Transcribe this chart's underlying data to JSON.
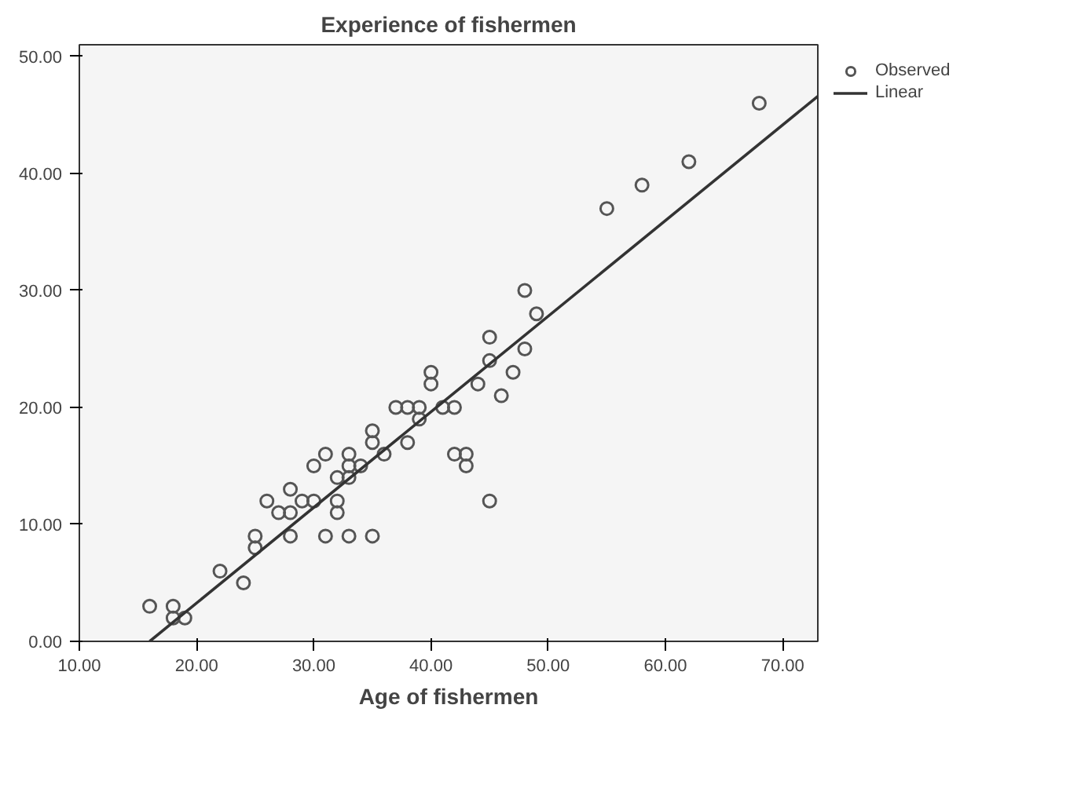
{
  "chart_data": {
    "type": "scatter",
    "title": "Experience of fishermen",
    "xlabel": "Age of fishermen",
    "xlim": [
      10,
      73
    ],
    "ylim": [
      0,
      51
    ],
    "xticks": [
      {
        "value": 10,
        "label": "10.00"
      },
      {
        "value": 20,
        "label": "20.00"
      },
      {
        "value": 30,
        "label": "30.00"
      },
      {
        "value": 40,
        "label": "40.00"
      },
      {
        "value": 50,
        "label": "50.00"
      },
      {
        "value": 60,
        "label": "60.00"
      },
      {
        "value": 70,
        "label": "70.00"
      }
    ],
    "yticks": [
      {
        "value": 0,
        "label": "0.00"
      },
      {
        "value": 10,
        "label": "10.00"
      },
      {
        "value": 20,
        "label": "20.00"
      },
      {
        "value": 30,
        "label": "30.00"
      },
      {
        "value": 40,
        "label": "40.00"
      },
      {
        "value": 50,
        "label": "50.00"
      }
    ],
    "grid": false,
    "legend": "right",
    "series": [
      {
        "name": "Observed",
        "marker": "circle",
        "color": "#555555",
        "x": [
          16,
          18,
          18,
          19,
          22,
          24,
          25,
          25,
          26,
          27,
          28,
          28,
          28,
          29,
          30,
          30,
          31,
          31,
          32,
          32,
          32,
          33,
          33,
          33,
          33,
          34,
          35,
          35,
          35,
          36,
          37,
          38,
          38,
          39,
          39,
          40,
          40,
          41,
          42,
          42,
          43,
          43,
          44,
          45,
          45,
          45,
          46,
          47,
          48,
          48,
          49,
          55,
          58,
          62,
          68
        ],
        "values": [
          3,
          3,
          2,
          2,
          6,
          5,
          9,
          8,
          12,
          11,
          13,
          11,
          9,
          12,
          12,
          15,
          16,
          9,
          14,
          12,
          11,
          14,
          16,
          15,
          9,
          15,
          18,
          17,
          9,
          16,
          20,
          20,
          17,
          20,
          19,
          23,
          22,
          20,
          20,
          16,
          16,
          15,
          22,
          26,
          24,
          12,
          21,
          23,
          30,
          25,
          28,
          37,
          39,
          41,
          46
        ]
      },
      {
        "name": "Linear",
        "type": "line",
        "color": "#333333",
        "line_style": "solid",
        "x": [
          16,
          73
        ],
        "values": [
          0,
          46.6
        ]
      }
    ]
  }
}
